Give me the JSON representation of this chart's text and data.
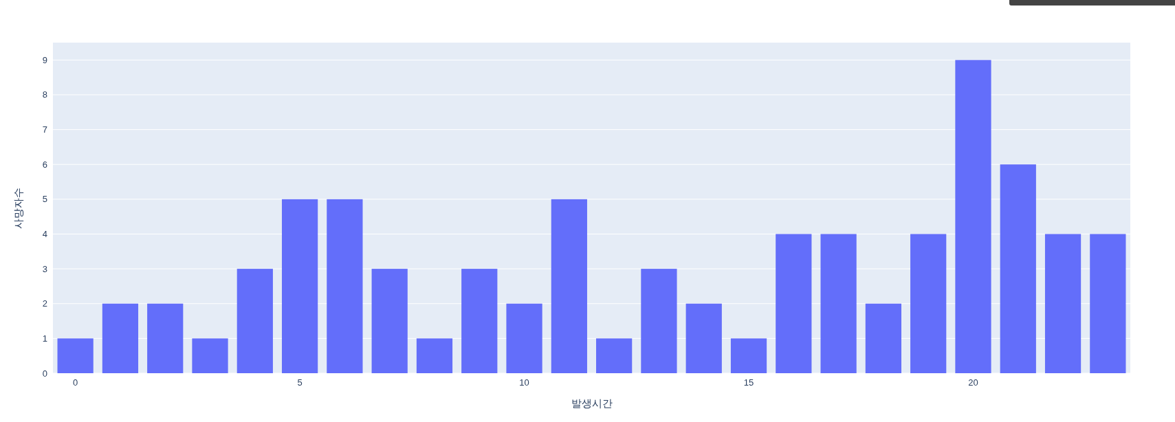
{
  "chart_data": {
    "type": "bar",
    "xlabel": "발생시간",
    "ylabel": "사망자수",
    "x": [
      0,
      1,
      2,
      3,
      4,
      5,
      6,
      7,
      8,
      9,
      10,
      11,
      12,
      13,
      14,
      15,
      16,
      17,
      18,
      19,
      20,
      21,
      22,
      23
    ],
    "values": [
      1,
      2,
      2,
      1,
      3,
      5,
      5,
      3,
      1,
      3,
      2,
      5,
      1,
      3,
      2,
      1,
      4,
      4,
      2,
      4,
      9,
      6,
      4,
      4
    ],
    "color": "#636efa",
    "xlim": [
      -0.5,
      23.5
    ],
    "xticks": [
      0,
      5,
      10,
      15,
      20
    ],
    "ylim": [
      0,
      9.5
    ],
    "yticks": [
      0,
      1,
      2,
      3,
      4,
      5,
      6,
      7,
      8,
      9
    ],
    "grid": "y"
  }
}
